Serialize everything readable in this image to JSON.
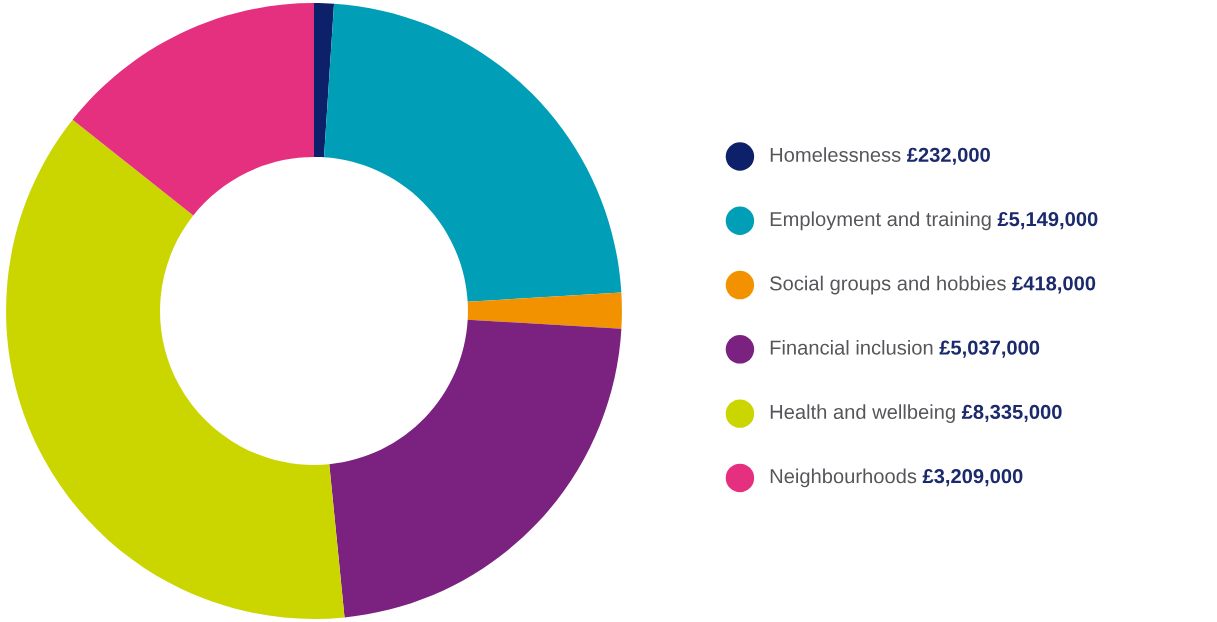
{
  "chart_data": {
    "type": "donut",
    "categories": [
      "Homelessness",
      "Employment and training",
      "Social groups and hobbies",
      "Financial inclusion",
      "Health and wellbeing",
      "Neighbourhoods"
    ],
    "values": [
      232000,
      5149000,
      418000,
      5037000,
      8335000,
      3209000
    ],
    "value_labels": [
      "£232,000",
      "£5,149,000",
      "£418,000",
      "£5,037,000",
      "£8,335,000",
      "£3,209,000"
    ],
    "colors": [
      "#0c2169",
      "#009fb7",
      "#f39200",
      "#7b2281",
      "#cbd500",
      "#e5307f"
    ],
    "legend": "right"
  }
}
